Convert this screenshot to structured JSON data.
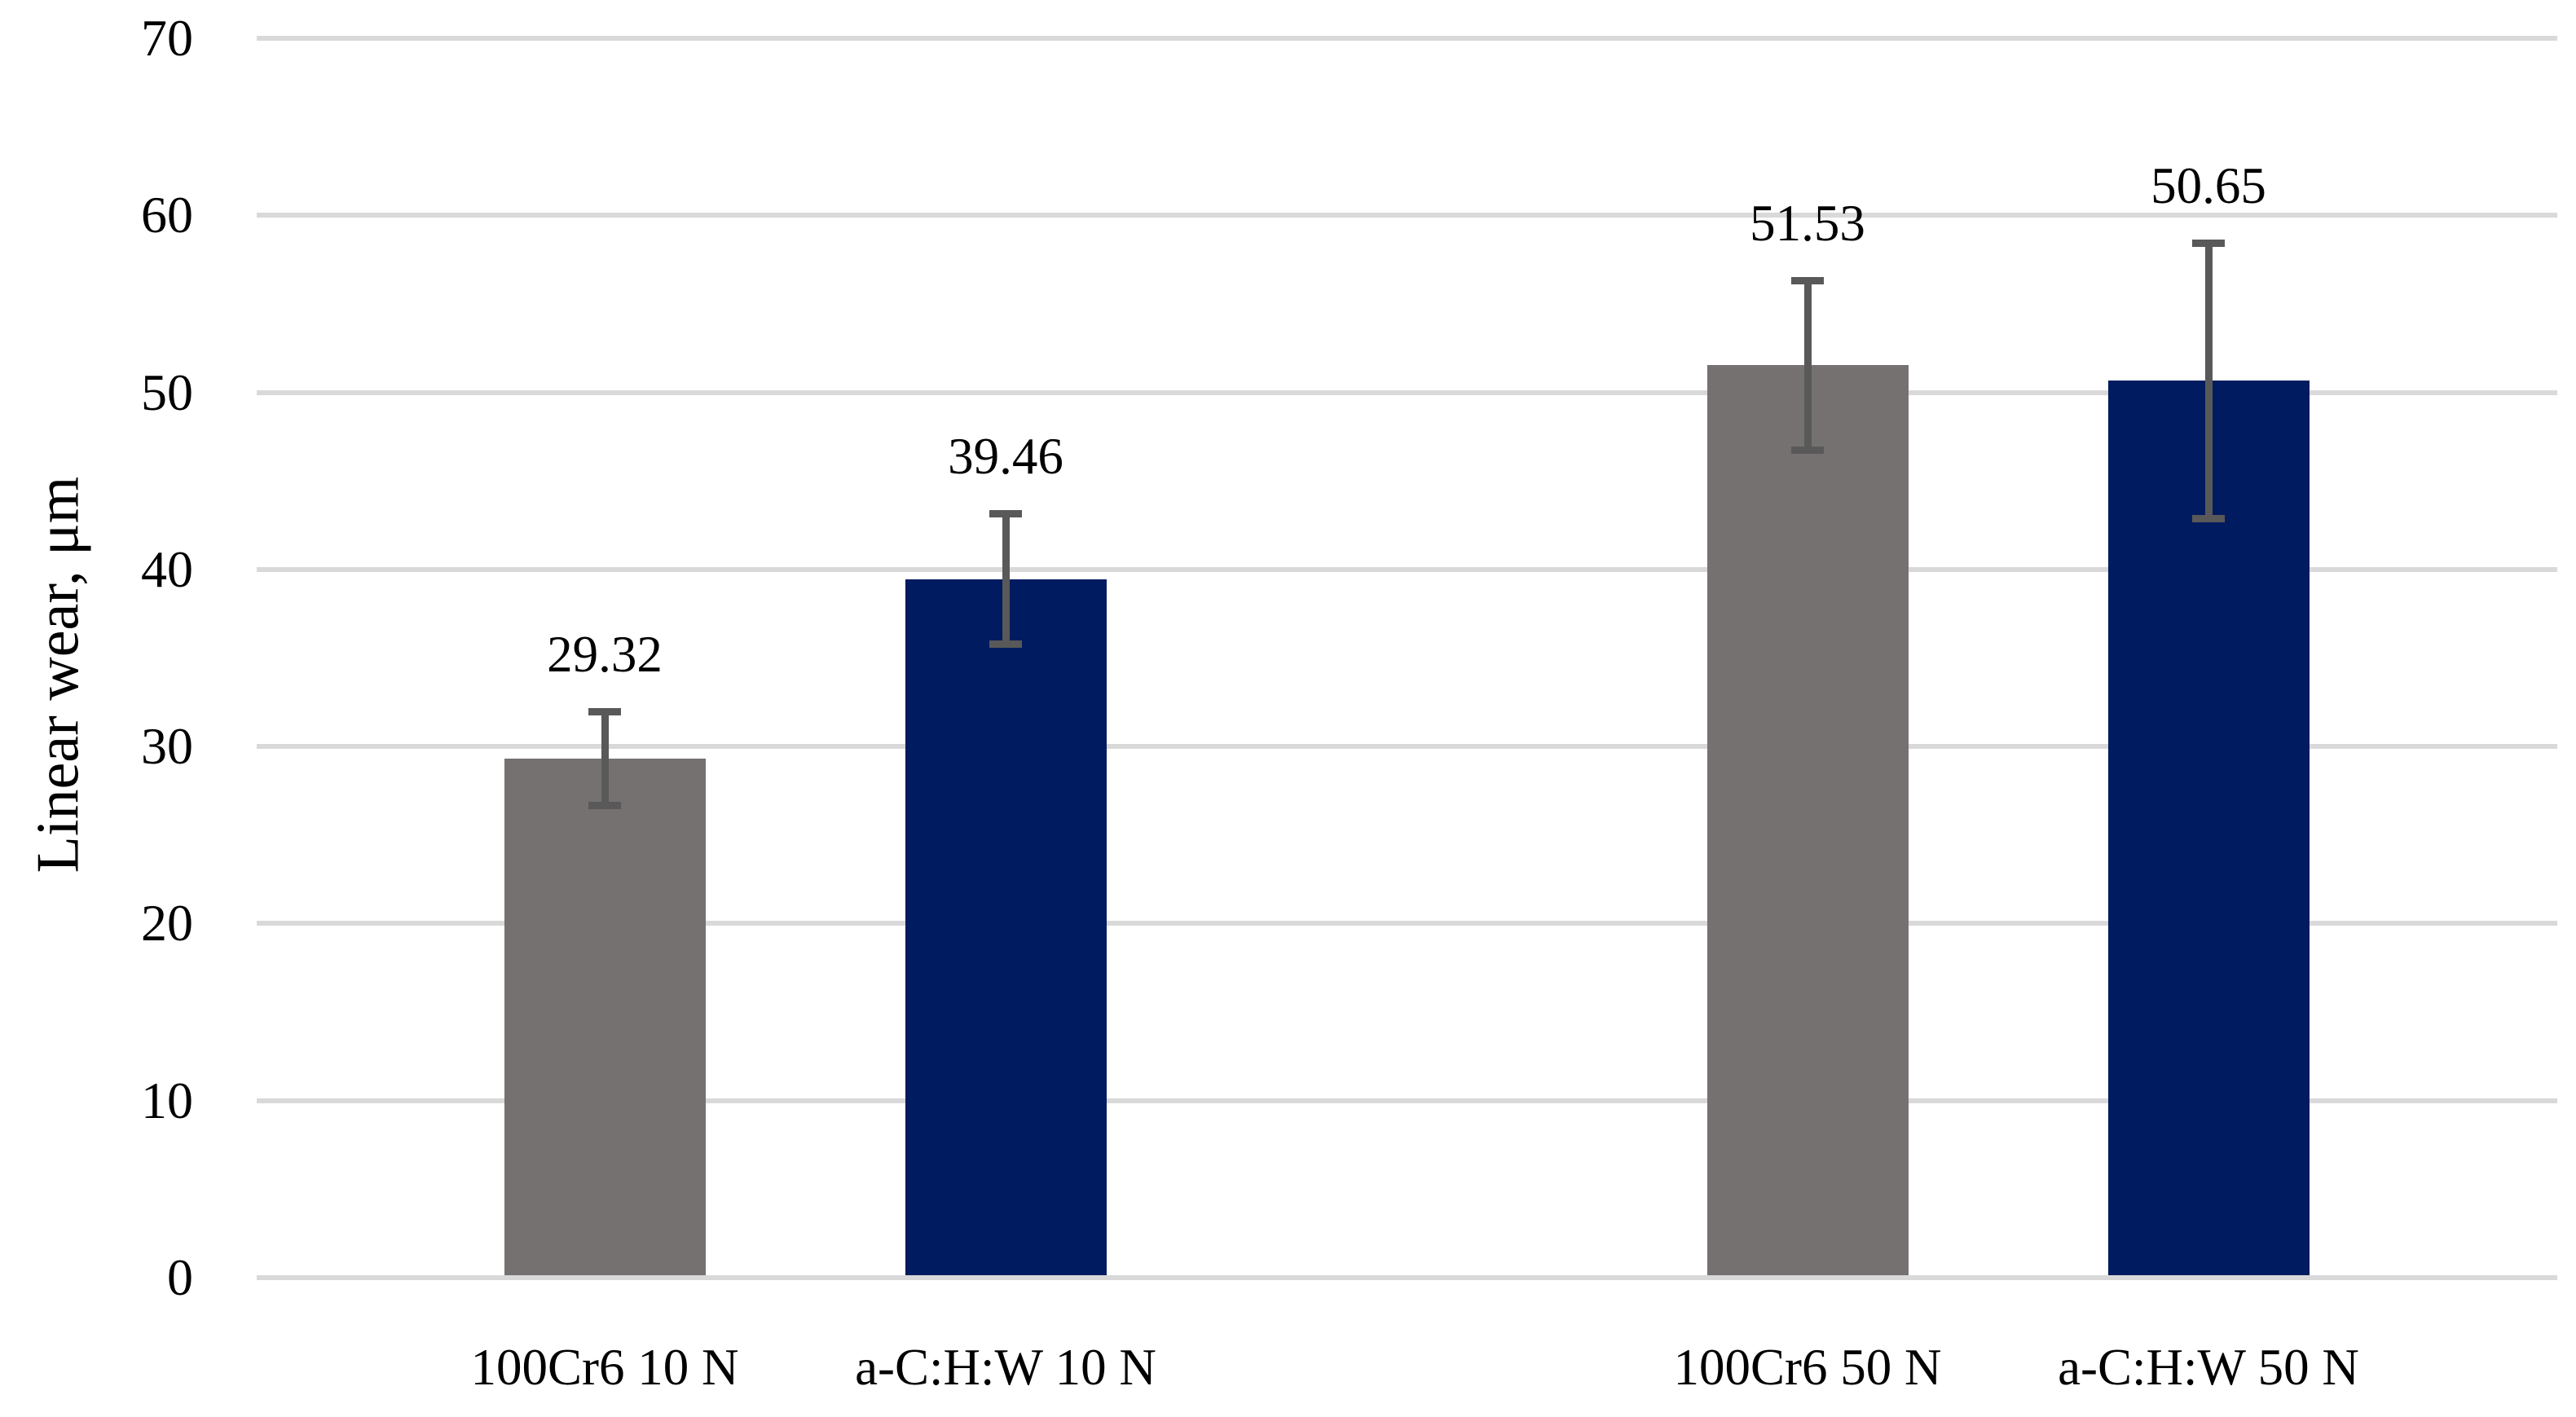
{
  "chart_data": {
    "type": "bar",
    "title": "",
    "xlabel": "",
    "ylabel": "Linear wear, μm",
    "ylim": [
      0,
      70
    ],
    "yticks": [
      0,
      10,
      20,
      30,
      40,
      50,
      60,
      70
    ],
    "grid": "horizontal",
    "legend": "none",
    "categories": [
      "100Cr6 10 N",
      "a-C:H:W 10 N",
      "100Cr6 50 N",
      "a-C:H:W 50 N"
    ],
    "values": [
      29.32,
      39.46,
      51.53,
      50.65
    ],
    "data_labels": [
      "29.32",
      "39.46",
      "51.53",
      "50.65"
    ],
    "error_bars": [
      {
        "plus": 2.85,
        "minus": 2.85
      },
      {
        "plus": 3.9,
        "minus": 3.9
      },
      {
        "plus": 5.0,
        "minus": 5.0
      },
      {
        "plus": 8.0,
        "minus": 8.0
      }
    ],
    "bar_colors": [
      "#767171",
      "#001B60",
      "#767171",
      "#001B60"
    ],
    "layout_note": "four bars in two groups (10 N group, 50 N group) separated by one empty category slot"
  },
  "colors": {
    "gray_bar": "#767171",
    "navy_bar": "#001B60",
    "gridline": "#D9D9D9",
    "axis_line": "#D9D9D9",
    "error_bar": "#595959",
    "text": "#000000",
    "background": "#FFFFFF"
  }
}
